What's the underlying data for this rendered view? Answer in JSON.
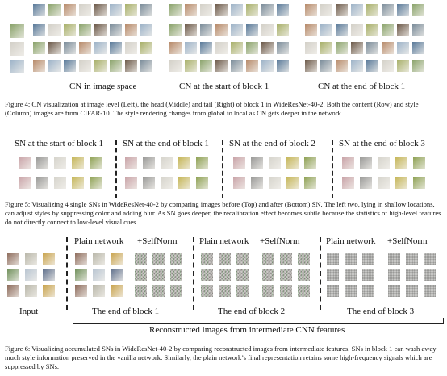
{
  "figure4": {
    "labels": [
      "CN in image space",
      "CN at the start of block 1",
      "CN at the end of block 1"
    ],
    "caption": "Figure 4: CN visualization at image level (Left), the head (Middle) and tail (Right) of block 1 in WideResNet-40-2. Both the content (Row) and style (Column) images are from CIFAR-10. The style rendering changes from global to local as CN gets deeper in the network.",
    "colors": [
      "#5a7a9a",
      "#8aa36b",
      "#b78a6a",
      "#d3d0c8",
      "#6d5a4a",
      "#9db3c8",
      "#a8b06a",
      "#7b8c9a"
    ]
  },
  "figure5": {
    "labels": [
      "SN at the start of block 1",
      "SN at the end of block 1",
      "SN at the end of block 2",
      "SN at the end of block 3"
    ],
    "caption": "Figure 5: Visualizing 4 single SNs in WideResNet-40-2 by comparing images before (Top) and after (Bottom) SN. The left two, lying in shallow locations, can adjust styles by suppressing color and adding blur. As SN goes deeper, the recalibration effect becomes subtle because the statistics of high-level features do not directly connect to low-level visual cues.",
    "colors": [
      "#c9a4a8",
      "#9a9a98",
      "#d6d4cc",
      "#c6b75a",
      "#8fa255"
    ]
  },
  "figure6": {
    "input_label": "Input",
    "col_labels": [
      "Plain network",
      "+SelfNorm",
      "Plain network",
      "+SelfNorm",
      "Plain network",
      "+SelfNorm"
    ],
    "block_labels": [
      "The end of block 1",
      "The end of block 2",
      "The end of block 3"
    ],
    "reconstructed_label": "Reconstructed images from intermediate CNN features",
    "caption": "Figure 6: Visualizing accumulated SNs in WideResNet-40-2 by comparing reconstructed images from intermediate features. SNs in block 1 can wash away much style information preserved in the vanilla network. Similarly, the plain network’s final representation retains some high-frequency signals which are suppressed by SNs.",
    "input_colors": [
      "#8c6a5a",
      "#b8b6a8",
      "#c8a24a",
      "#6f8f5a",
      "#b8c4d0",
      "#5d6e8a"
    ]
  }
}
